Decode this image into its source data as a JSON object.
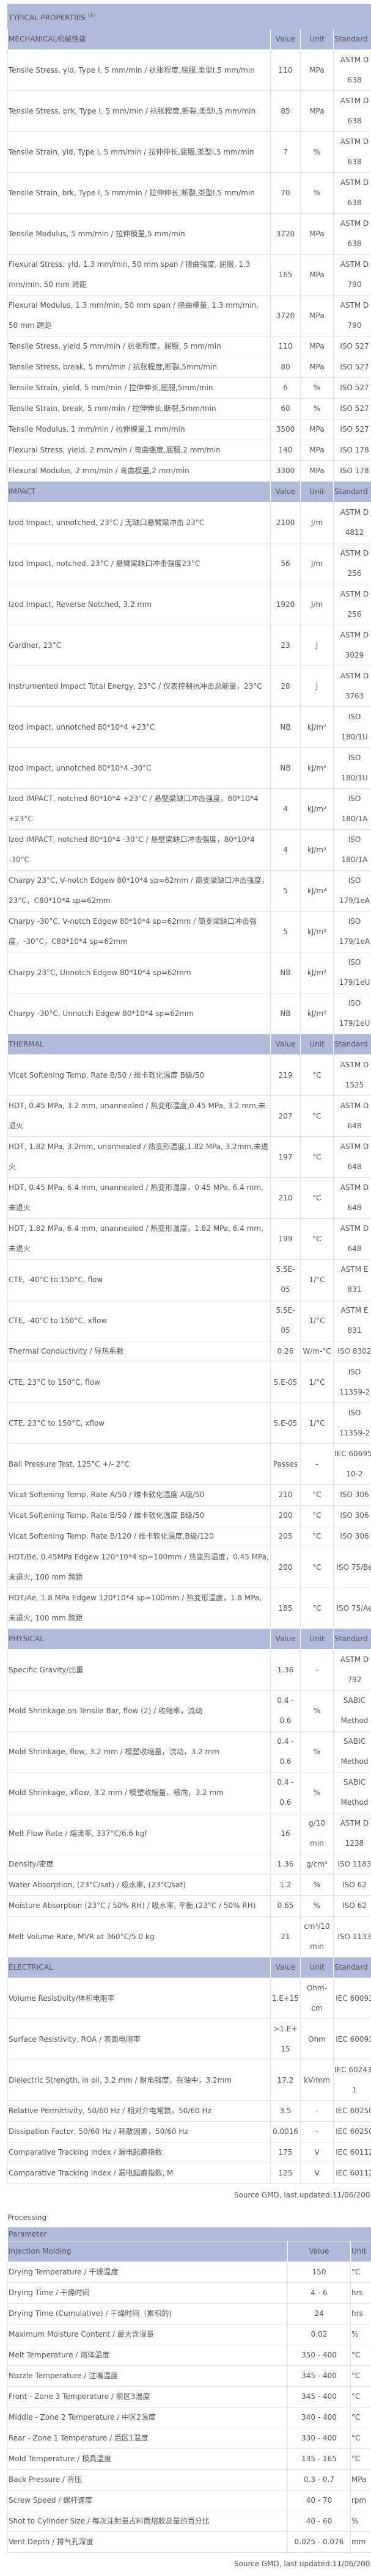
{
  "typical_properties": {
    "title": "TYPICAL PROPERTIES",
    "footnote_mark": "(1)",
    "sections": [
      {
        "name": "MECHANICAL机械性能",
        "value": "Value",
        "unit": "Unit",
        "standard": "Standard",
        "rows": [
          {
            "property": "Tensile Stress, yld, Type I, 5 mm/min / 抗张程度,屈服,类型I,5 mm/min",
            "value": "110",
            "unit": "MPa",
            "standard": "ASTM D 638"
          },
          {
            "property": "Tensile Stress, brk, Type I, 5 mm/min / 抗张程度,断裂,类型I,5 mm/min",
            "value": "85",
            "unit": "MPa",
            "standard": "ASTM D 638"
          },
          {
            "property": "Tensile Strain, yld, Type I, 5 mm/min / 拉伸伸长,屈服,类型I,5 mm/min",
            "value": "7",
            "unit": "%",
            "standard": "ASTM D 638"
          },
          {
            "property": "Tensile Strain, brk, Type I, 5 mm/min / 拉伸伸长,断裂,类型I,5 mm/min",
            "value": "70",
            "unit": "%",
            "standard": "ASTM D 638"
          },
          {
            "property": "Tensile Modulus, 5 mm/min / 拉伸模量,5 mm/min",
            "value": "3720",
            "unit": "MPa",
            "standard": "ASTM D 638"
          },
          {
            "property": "Flexural Stress, yld, 1.3 mm/min, 50 mm span / 挠曲强度, 屈服, 1.3 mm/min, 50 mm 跨距",
            "value": "165",
            "unit": "MPa",
            "standard": "ASTM D 790"
          },
          {
            "property": "Flexural Modulus, 1.3 mm/min, 50 mm span / 挠曲模量, 1.3 mm/min, 50 mm 跨距",
            "value": "3720",
            "unit": "MPa",
            "standard": "ASTM D 790"
          },
          {
            "property": "Tensile Stress, yield 5 mm/min / 抗张程度，屈服, 5 mm/min",
            "value": "110",
            "unit": "MPa",
            "standard": "ISO 527"
          },
          {
            "property": "Tensile Stress, break, 5 mm/min / 抗张程度,断裂,5mm/min",
            "value": "80",
            "unit": "MPa",
            "standard": "ISO 527"
          },
          {
            "property": "Tensile Strain, yield, 5 mm/min / 拉伸伸长,屈服,5mm/min",
            "value": "6",
            "unit": "%",
            "standard": "ISO 527"
          },
          {
            "property": "Tensile Strain, break, 5 mm/min / 拉伸伸长,断裂,5mm/min",
            "value": "60",
            "unit": "%",
            "standard": "ISO 527"
          },
          {
            "property": "Tensile Modulus, 1 mm/min / 拉伸模量,1 mm/min",
            "value": "3500",
            "unit": "MPa",
            "standard": "ISO 527"
          },
          {
            "property": "Flexural Stress, yield, 2 mm/min / 弯曲强度,屈服,2 mm/min",
            "value": "140",
            "unit": "MPa",
            "standard": "ISO 178"
          },
          {
            "property": "Flexural Modulus, 2 mm/min / 弯曲模量,2 mm/min",
            "value": "3300",
            "unit": "MPa",
            "standard": "ISO 178"
          }
        ]
      },
      {
        "name": "IMPACT",
        "value": "Value",
        "unit": "Unit",
        "standard": "Standard",
        "rows": [
          {
            "property": "Izod Impact, unnotched, 23°C / 无缺口悬臂梁冲击 23°C",
            "value": "2100",
            "unit": "J/m",
            "standard": "ASTM D 4812"
          },
          {
            "property": "Izod Impact, notched, 23°C / 悬臂梁缺口冲击强度23°C",
            "value": "56",
            "unit": "J/m",
            "standard": "ASTM D 256"
          },
          {
            "property": "Izod Impact, Reverse Notched, 3.2 mm",
            "value": "1920",
            "unit": "J/m",
            "standard": "ASTM D 256"
          },
          {
            "property": "Gardner, 23°C",
            "value": "23",
            "unit": "J",
            "standard": "ASTM D 3029"
          },
          {
            "property": "Instrumented Impact Total Energy, 23°C / 仪表控制抗冲击总能量，23°C",
            "value": "28",
            "unit": "J",
            "standard": "ASTM D 3763"
          },
          {
            "property": "Izod Impact, unnotched 80*10*4 +23°C",
            "value": "NB",
            "unit": "kJ/m²",
            "standard": "ISO 180/1U"
          },
          {
            "property": "Izod Impact, unnotched 80*10*4 -30°C",
            "value": "NB",
            "unit": "kJ/m²",
            "standard": "ISO 180/1U"
          },
          {
            "property": "Izod IMPACT, notched 80*10*4 +23°C / 悬壁梁缺口冲击强度，80*10*4 +23°C",
            "value": "4",
            "unit": "kJ/m²",
            "standard": "ISO 180/1A"
          },
          {
            "property": "Izod IMPACT, notched 80*10*4 -30°C / 悬壁梁缺口冲击强度，80*10*4 -30°C",
            "value": "4",
            "unit": "kJ/m²",
            "standard": "ISO 180/1A"
          },
          {
            "property": "Charpy 23°C, V-notch Edgew 80*10*4 sp=62mm / 简支梁缺口冲击强度，23°C，C80*10*4 sp=62mm",
            "value": "5",
            "unit": "kJ/m²",
            "standard": "ISO 179/1eA"
          },
          {
            "property": "Charpy -30°C, V-notch Edgew 80*10*4 sp=62mm / 简支梁缺口冲击强度，-30°C，C80*10*4 sp=62mm",
            "value": "5",
            "unit": "kJ/m²",
            "standard": "ISO 179/1eA"
          },
          {
            "property": "Charpy 23°C, Unnotch Edgew 80*10*4 sp=62mm",
            "value": "NB",
            "unit": "kJ/m²",
            "standard": "ISO 179/1eU"
          },
          {
            "property": "Charpy -30°C, Unnotch Edgew 80*10*4 sp=62mm",
            "value": "NB",
            "unit": "kJ/m²",
            "standard": "ISO 179/1eU"
          }
        ]
      },
      {
        "name": "THERMAL",
        "value": "Value",
        "unit": "Unit",
        "standard": "Standard",
        "rows": [
          {
            "property": "Vicat Softening Temp, Rate B/50 / 维卡软化温度 B级/50",
            "value": "219",
            "unit": "°C",
            "standard": "ASTM D 1525"
          },
          {
            "property": "HDT, 0.45 MPa, 3.2 mm, unannealed / 热变形温度,0.45 MPa, 3.2 mm,未退火",
            "value": "207",
            "unit": "°C",
            "standard": "ASTM D 648"
          },
          {
            "property": "HDT, 1.82 MPa, 3.2mm, unannealed / 热变形温度,1.82 MPa, 3.2mm,未退火",
            "value": "197",
            "unit": "°C",
            "standard": "ASTM D 648"
          },
          {
            "property": "HDT, 0.45 MPa, 6.4 mm, unannealed / 热变形温度，0.45 MPa, 6.4 mm, 未退火",
            "value": "210",
            "unit": "°C",
            "standard": "ASTM D 648"
          },
          {
            "property": "HDT, 1.82 MPa, 6.4 mm, unannealed / 热变形温度，1.82 MPa, 6.4 mm, 未退火",
            "value": "199",
            "unit": "°C",
            "standard": "ASTM D 648"
          },
          {
            "property": "CTE, -40°C to 150°C, flow",
            "value": "5.5E-05",
            "unit": "1/°C",
            "standard": "ASTM E 831"
          },
          {
            "property": "CTE, -40°C to 150°C, xflow",
            "value": "5.5E-05",
            "unit": "1/°C",
            "standard": "ASTM E 831"
          },
          {
            "property": "Thermal Conductivity / 导热系数",
            "value": "0.26",
            "unit": "W/m-°C",
            "standard": "ISO 8302"
          },
          {
            "property": "CTE, 23°C to 150°C, flow",
            "value": "5.E-05",
            "unit": "1/°C",
            "standard": "ISO 11359-2"
          },
          {
            "property": "CTE, 23°C to 150°C, xflow",
            "value": "5.E-05",
            "unit": "1/°C",
            "standard": "ISO 11359-2"
          },
          {
            "property": "Ball Pressure Test, 125°C +/- 2°C",
            "value": "Passes",
            "unit": "-",
            "standard": "IEC 60695-10-2"
          },
          {
            "property": "Vicat Softening Temp, Rate A/50 / 维卡软化温度 A级/50",
            "value": "210",
            "unit": "°C",
            "standard": "ISO 306"
          },
          {
            "property": "Vicat Softening Temp, Rate B/50 / 维卡软化温度 B级/50",
            "value": "200",
            "unit": "°C",
            "standard": "ISO 306"
          },
          {
            "property": "Vicat Softening Temp, Rate B/120 / 维卡软化温度,B级/120",
            "value": "205",
            "unit": "°C",
            "standard": "ISO 306"
          },
          {
            "property": "HDT/Be, 0.45MPa Edgew 120*10*4 sp=100mm / 热变形温度，0.45 MPa, 未退火, 100 mm 跨距",
            "value": "200",
            "unit": "°C",
            "standard": "ISO 75/Be"
          },
          {
            "property": "HDT/Ae, 1.8 MPa Edgew 120*10*4 sp=100mm / 热变形温度，1.8 MPa, 未退火, 100 mm 跨距",
            "value": "185",
            "unit": "°C",
            "standard": "ISO 75/Ae"
          }
        ]
      },
      {
        "name": "PHYSICAL",
        "value": "Value",
        "unit": "Unit",
        "standard": "Standard",
        "rows": [
          {
            "property": "Specific Gravity/比重",
            "value": "1.36",
            "unit": "-",
            "standard": "ASTM D 792"
          },
          {
            "property": "Mold Shrinkage on Tensile Bar, flow (2) / 收缩率，流动",
            "value": "0.4 - 0.6",
            "unit": "%",
            "standard": "SABIC Method"
          },
          {
            "property": "Mold Shrinkage, flow, 3.2 mm / 模塑收缩量，流动，3.2 mm",
            "value": "0.4 - 0.6",
            "unit": "%",
            "standard": "SABIC Method"
          },
          {
            "property": "Mold Shrinkage, xflow, 3.2 mm / 模塑收缩量，横向，3.2 mm",
            "value": "0.4 - 0.6",
            "unit": "%",
            "standard": "SABIC Method"
          },
          {
            "property": "Melt Flow Rate / 熔流率, 337°C/6.6 kgf",
            "value": "16",
            "unit": "g/10 min",
            "standard": "ASTM D 1238"
          },
          {
            "property": "Density/密度",
            "value": "1.36",
            "unit": "g/cm³",
            "standard": "ISO 1183"
          },
          {
            "property": "Water Absorption, (23°C/sat) / 吸水率, (23°C/sat)",
            "value": "1.2",
            "unit": "%",
            "standard": "ISO 62"
          },
          {
            "property": "Moisture Absorption (23°C / 50% RH) / 吸水率, 平衡,(23°C / 50% RH)",
            "value": "0.65",
            "unit": "%",
            "standard": "ISO 62"
          },
          {
            "property": "Melt Volume Rate, MVR at 360°C/5.0 kg",
            "value": "21",
            "unit": "cm³/10 min",
            "standard": "ISO 1133"
          }
        ]
      },
      {
        "name": "ELECTRICAL",
        "value": "Value",
        "unit": "Unit",
        "standard": "Standard",
        "rows": [
          {
            "property": "Volume Resistivity/体积电阻率",
            "value": "1.E+15",
            "unit": "Ohm-cm",
            "standard": "IEC 60093"
          },
          {
            "property": "Surface Resistivity, ROA / 表面电阻率",
            "value": ">1.E+15",
            "unit": "Ohm",
            "standard": "IEC 60093"
          },
          {
            "property": "Dielectric Strength, in oil, 3.2 mm / 耐电强度，在油中，3.2mm",
            "value": "17.2",
            "unit": "kV/mm",
            "standard": "IEC 60243-1"
          },
          {
            "property": "Relative Permittivity, 50/60 Hz / 相对介电常数，50/60 Hz",
            "value": "3.5",
            "unit": "-",
            "standard": "IEC 60250"
          },
          {
            "property": "Dissipation Factor, 50/60 Hz / 耗散因素，50/60 Hz",
            "value": "0.0016",
            "unit": "-",
            "standard": "IEC 60250"
          },
          {
            "property": "Comparative Tracking Index / 漏电起痕指数",
            "value": "175",
            "unit": "V",
            "standard": "IEC 60112"
          },
          {
            "property": "Comparative Tracking Index / 漏电起痕指数, M",
            "value": "125",
            "unit": "V",
            "standard": "IEC 60112"
          }
        ]
      }
    ],
    "source": "Source GMD, last updated:11/06/2003"
  },
  "processing": {
    "title": "Processing",
    "parameter_label": "Parameter",
    "section": "Injection Molding",
    "value": "Value",
    "unit": "Unit",
    "rows": [
      {
        "property": "Drying Temperature / 干燥温度",
        "value": "150",
        "unit": "°C"
      },
      {
        "property": "Drying Time / 干燥时间",
        "value": "4 - 6",
        "unit": "hrs"
      },
      {
        "property": "Drying Time (Cumulative) / 干燥时间（累积的)",
        "value": "24",
        "unit": "hrs"
      },
      {
        "property": "Maximum Moisture Content / 最大含湿量",
        "value": "0.02",
        "unit": "%"
      },
      {
        "property": "Melt Temperature / 熔体温度",
        "value": "350 - 400",
        "unit": "°C"
      },
      {
        "property": "Nozzle Temperature / 注嘴温度",
        "value": "345 - 400",
        "unit": "°C"
      },
      {
        "property": "Front - Zone 3 Temperature / 前区3温度",
        "value": "345 - 400",
        "unit": "°C"
      },
      {
        "property": "Middle - Zone 2 Temperature / 中区2温度",
        "value": "340 - 400",
        "unit": "°C"
      },
      {
        "property": "Rear - Zone 1 Temperature / 后区1温度",
        "value": "330 - 400",
        "unit": "°C"
      },
      {
        "property": "Mold Temperature / 模具温度",
        "value": "135 - 165",
        "unit": "°C"
      },
      {
        "property": "Back Pressure / 背压",
        "value": "0.3 - 0.7",
        "unit": "MPa"
      },
      {
        "property": "Screw Speed / 螺杆速度",
        "value": "40 - 70",
        "unit": "rpm"
      },
      {
        "property": "Shot to Cylinder Size / 每次注射量占料筒熔胶总量的百分比",
        "value": "40 - 60",
        "unit": "%"
      },
      {
        "property": "Vent Depth / 排气孔深度",
        "value": "0.025 - 0.076",
        "unit": "mm"
      }
    ],
    "source": "Source GMD, last updated:11/06/2003"
  },
  "colors": {
    "header_bg": "#b0bbdb",
    "text": "#555555",
    "outer_border": "#333333"
  }
}
